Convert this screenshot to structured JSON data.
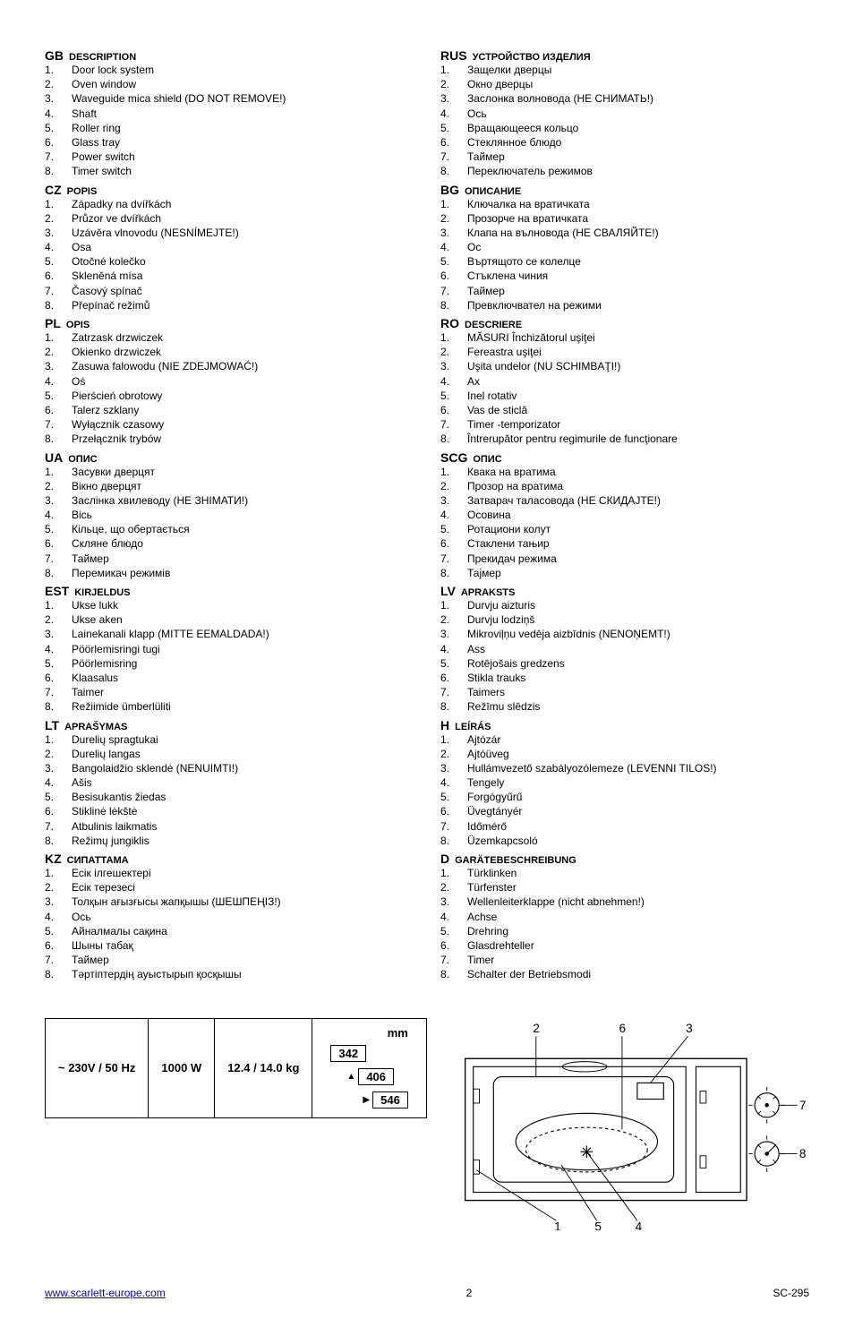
{
  "sections": {
    "left": [
      {
        "code": "GB",
        "title": "DESCRIPTION",
        "items": [
          "Door lock system",
          "Oven window",
          "Waveguide mica shield (DO NOT REMOVE!)",
          "Shaft",
          "Roller ring",
          "Glass tray",
          "Power switch",
          "Timer switch"
        ]
      },
      {
        "code": "CZ",
        "title": "POPIS",
        "items": [
          "Západky na dvířkách",
          "Průzor ve dvířkách",
          "Uzávěra vlnovodu (NESNÍMEJTE!)",
          "Osa",
          "Otočné kolečko",
          "Skleněná mísa",
          "Časový spínač",
          "Přepínač režimů"
        ]
      },
      {
        "code": "PL",
        "title": "OPIS",
        "items": [
          "Zatrzask drzwiczek",
          "Okienko drzwiczek",
          "Zasuwa falowodu (NIE ZDEJMOWAĆ!)",
          "Oś",
          "Pierścień obrotowy",
          "Talerz szklany",
          "Wyłącznik czasowy",
          "Przełącznik trybów"
        ]
      },
      {
        "code": "UA",
        "title": "ОПИС",
        "items": [
          "Засувки дверцят",
          "Вікно дверцят",
          "Заслінка хвилеводу (НЕ ЗНІМАТИ!)",
          "Вісь",
          "Кільце, що обертається",
          "Скляне блюдо",
          "Таймер",
          "Перемикач режимів"
        ]
      },
      {
        "code": "EST",
        "title": "KIRJELDUS",
        "items": [
          "Ukse lukk",
          "Ukse aken",
          "Lainekanali klapp (MITTE EEMALDADA!)",
          "Pöörlemisringi tugi",
          "Pöörlemisring",
          "Klaasalus",
          "Taimer",
          "Režiimide ümberlüliti"
        ]
      },
      {
        "code": "LT",
        "title": "APRAŠYMAS",
        "items": [
          "Durelių spragtukai",
          "Durelių langas",
          "Bangolaidžio sklendė (NENUIMTI!)",
          "Ašis",
          "Besisukantis žiedas",
          "Stiklinė lėkštė",
          "Atbulinis laikmatis",
          "Režimų jungiklis"
        ]
      },
      {
        "code": "KZ",
        "title": "СИПАТТАМА",
        "items": [
          "Есік ілгешектері",
          "Есік терезесі",
          "Толқын ағызғысы жапқышы (ШЕШПЕҢІЗ!)",
          "Ось",
          "Айналмалы сақина",
          "Шыны табақ",
          "Таймер",
          "Тәртіптердің ауыстырып қосқышы"
        ]
      }
    ],
    "right": [
      {
        "code": "RUS",
        "title": "УСТРОЙСТВО ИЗДЕЛИЯ",
        "items": [
          "Защелки дверцы",
          "Окно дверцы",
          "Заслонка волновода (НЕ СНИМАТЬ!)",
          "Ось",
          "Вращающееся кольцо",
          "Стеклянное блюдо",
          "Таймер",
          "Переключатель режимов"
        ]
      },
      {
        "code": "BG",
        "title": "ОПИСАНИЕ",
        "items": [
          "Ключалка на вратичката",
          "Прозорче на вратичката",
          "Клапа на вълновода (НЕ СВАЛЯЙТЕ!)",
          "Ос",
          "Въртящото се колелце",
          "Стъклена чиния",
          "Таймер",
          "Превключвател на режими"
        ]
      },
      {
        "code": "RO",
        "title": "DESCRIERE",
        "items": [
          "MĂSURI Închizătorul uşiţei",
          "Fereastra uşiţei",
          "Uşita undelor (NU SCHIMBAŢI!)",
          "Ax",
          "Inel rotativ",
          "Vas de sticlă",
          "Timer -temporizator",
          "Întrerupător pentru regimurile de funcţionare"
        ]
      },
      {
        "code": "SCG",
        "title": "ОПИС",
        "items": [
          "Квака на вратима",
          "Прозор на вратима",
          "Затварач таласовода (НЕ СКИДАЈТЕ!)",
          "Осовина",
          "Ротациони колут",
          "Стаклени тањир",
          "Прекидач режима",
          "Тајмер"
        ]
      },
      {
        "code": "LV",
        "title": "APRAKSTS",
        "items": [
          "Durvju aizturis",
          "Durvju lodziņš",
          "Mikroviļņu vedēja aizbīdnis (NENOŅEMT!)",
          "Ass",
          "Rotējošais gredzens",
          "Stikla trauks",
          "Taimers",
          "Režīmu slēdzis"
        ]
      },
      {
        "code": "H",
        "title": "LEÍRÁS",
        "items": [
          "Ajtózár",
          "Ajtóüveg",
          "Hullámvezető szabályozólemeze (LEVENNI TILOS!)",
          "Tengely",
          "Forgógyűrű",
          "Üvegtányér",
          "Időmérő",
          "Üzemkapcsoló"
        ]
      },
      {
        "code": "D",
        "title": "GARÄTEBESCHREIBUNG",
        "items": [
          "Türklinken",
          "Türfenster",
          "Wellenleiterklappe (nicht abnehmen!)",
          "Achse",
          "Drehring",
          "Glasdrehteller",
          "Timer",
          "Schalter der Betriebsmodi"
        ]
      }
    ]
  },
  "spec": {
    "voltage": "~ 230V / 50 Hz",
    "watt": "1000 W",
    "weight": "12.4 / 14.0 kg",
    "dim_unit": "mm",
    "dim_h": "342",
    "dim_d": "406",
    "dim_w": "546"
  },
  "callouts": {
    "c1": "1",
    "c2": "2",
    "c3": "3",
    "c4": "4",
    "c5": "5",
    "c6": "6",
    "c7": "7",
    "c8": "8"
  },
  "footer": {
    "url_text": "www.scarlett-europe.com",
    "url_href": "http://www.scarlett-europe.com",
    "page": "2",
    "model": "SC-295"
  },
  "colors": {
    "text": "#000000",
    "bg": "#ffffff",
    "link": "#0000EE",
    "border": "#000000"
  }
}
